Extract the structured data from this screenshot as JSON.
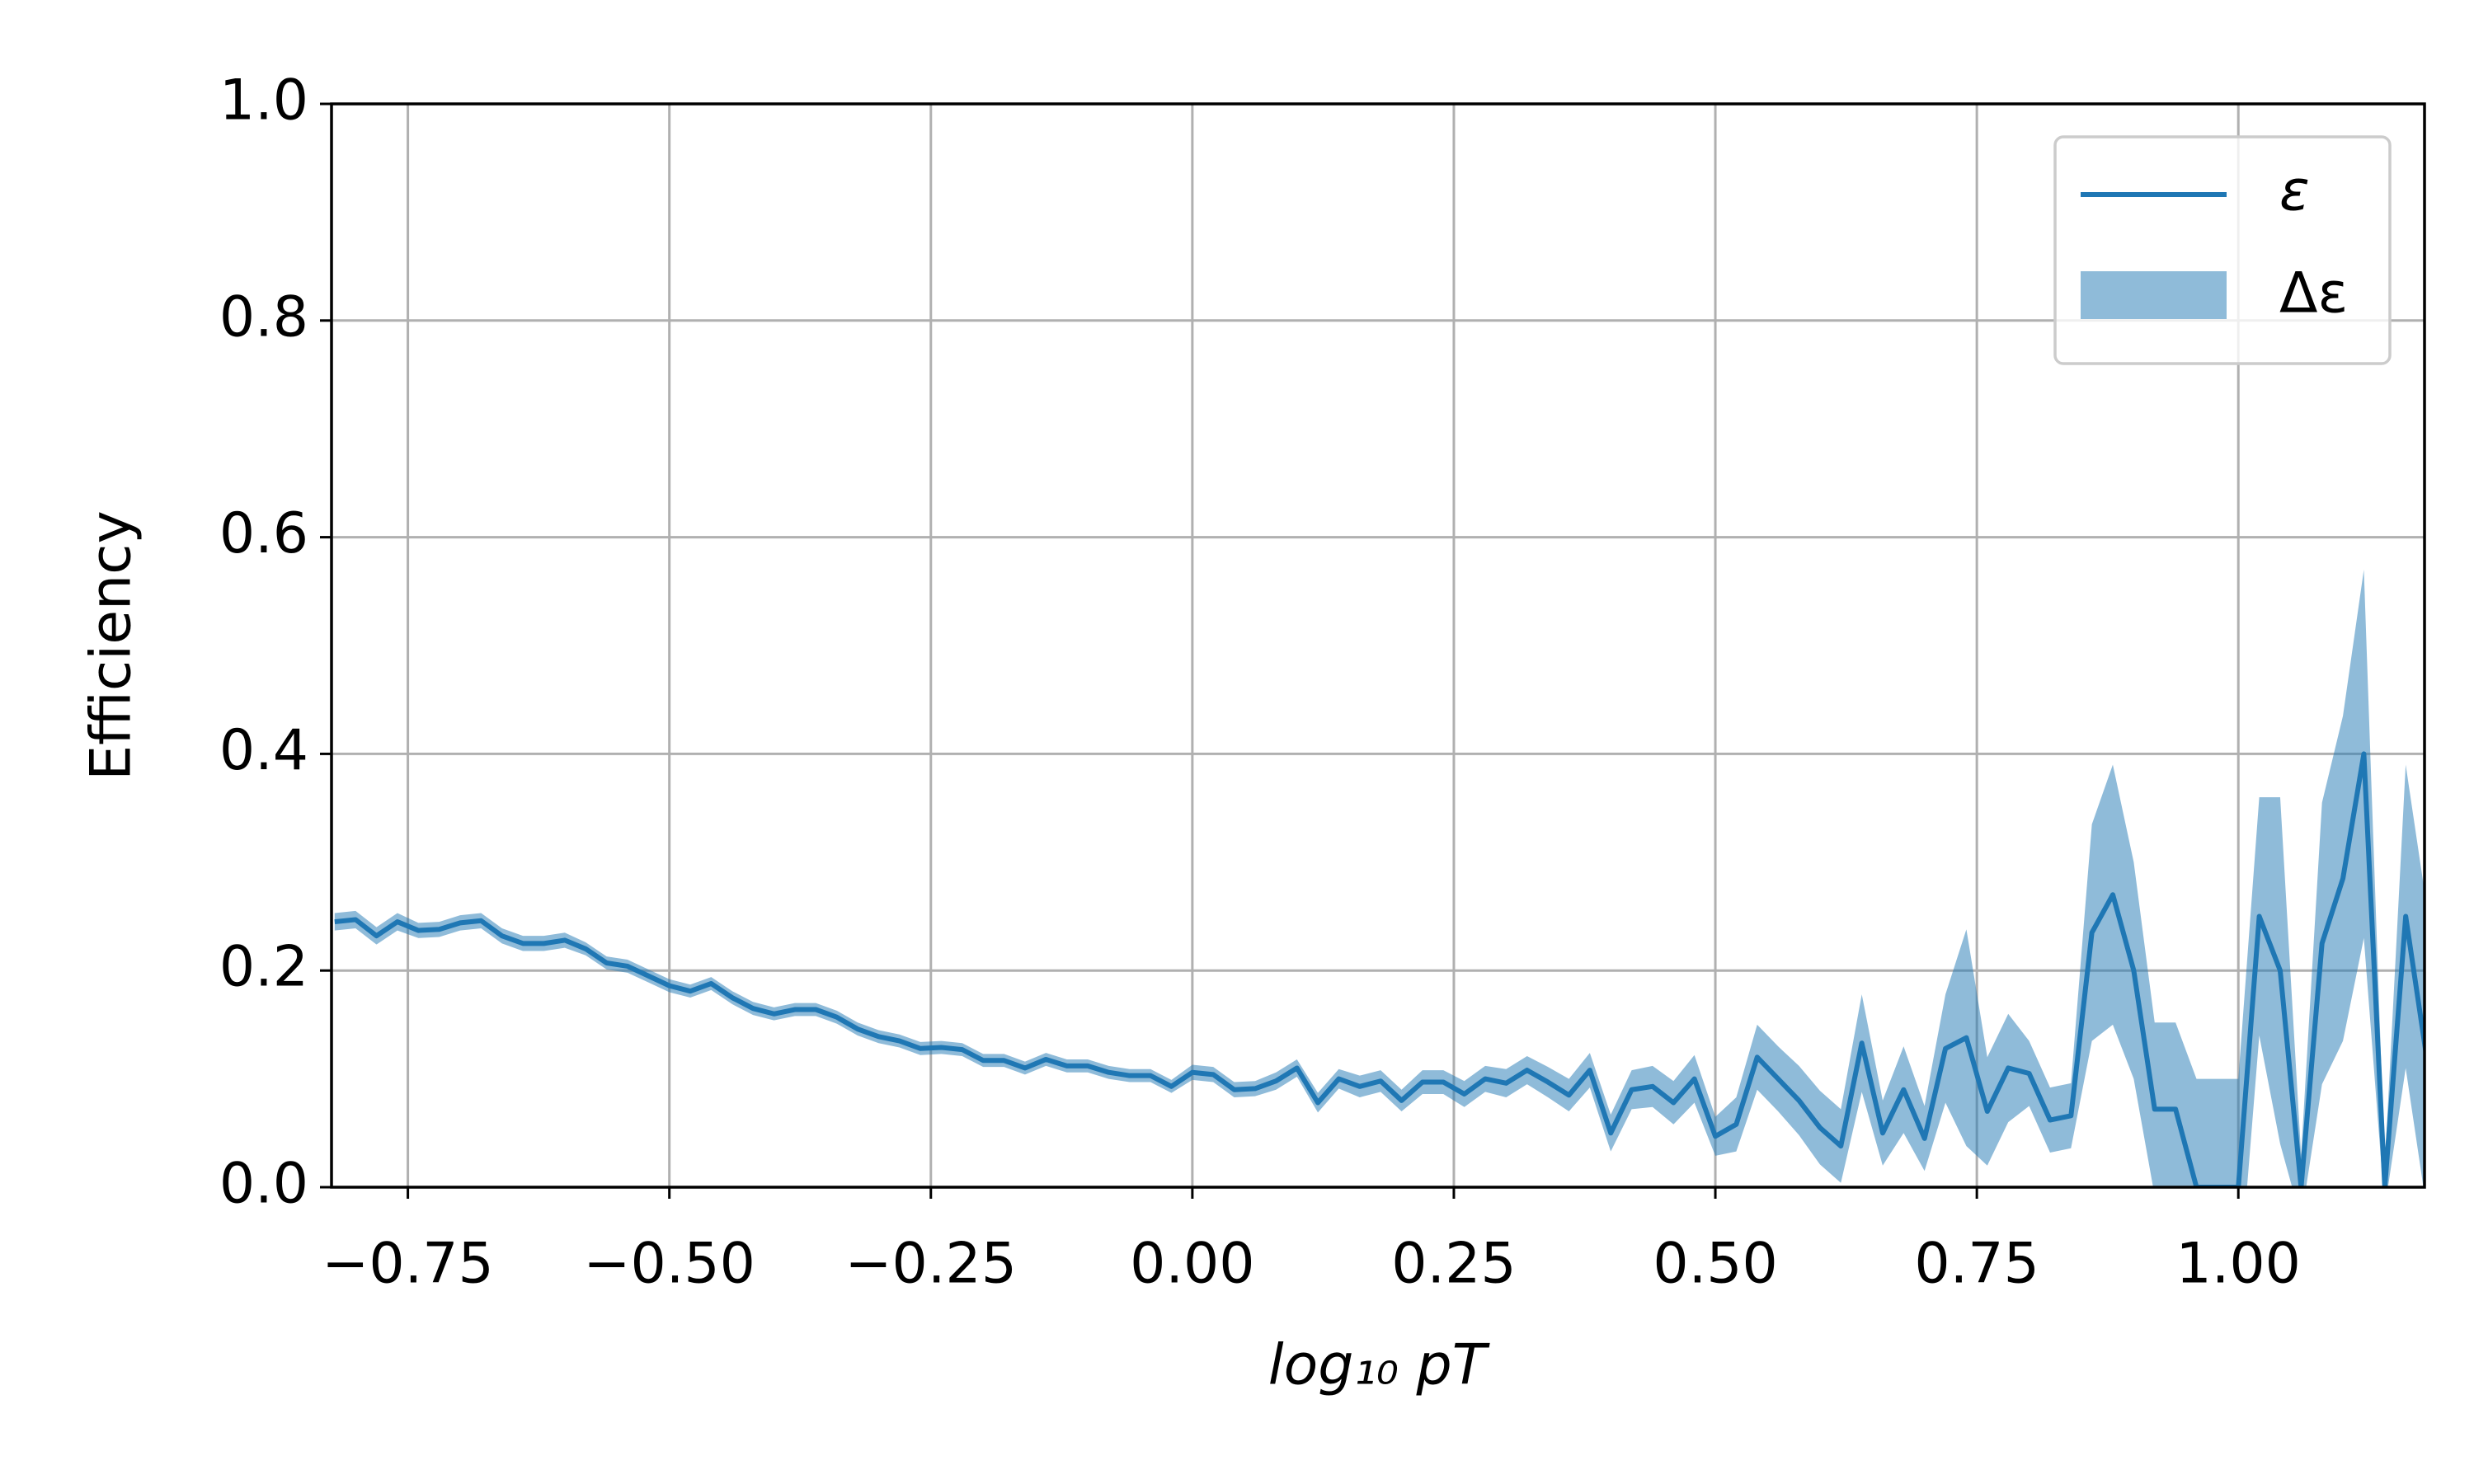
{
  "chart_data": {
    "type": "line",
    "x_label": "log₁₀ pT",
    "y_label": "Efficiency",
    "x": [
      -0.82,
      -0.8,
      -0.78,
      -0.76,
      -0.74,
      -0.72,
      -0.7,
      -0.68,
      -0.66,
      -0.64,
      -0.62,
      -0.6,
      -0.58,
      -0.56,
      -0.54,
      -0.52,
      -0.5,
      -0.48,
      -0.46,
      -0.44,
      -0.42,
      -0.4,
      -0.38,
      -0.36,
      -0.34,
      -0.32,
      -0.3,
      -0.28,
      -0.26,
      -0.24,
      -0.22,
      -0.2,
      -0.18,
      -0.16,
      -0.14,
      -0.12,
      -0.1,
      -0.08,
      -0.06,
      -0.04,
      -0.02,
      0,
      0.02,
      0.04,
      0.06,
      0.08,
      0.1,
      0.12,
      0.14,
      0.16,
      0.18,
      0.2,
      0.22,
      0.24,
      0.26,
      0.28,
      0.3,
      0.32,
      0.34,
      0.36,
      0.38,
      0.4,
      0.42,
      0.44,
      0.46,
      0.48,
      0.5,
      0.52,
      0.54,
      0.56,
      0.58,
      0.6,
      0.62,
      0.64,
      0.66,
      0.68,
      0.7,
      0.72,
      0.74,
      0.76,
      0.78,
      0.8,
      0.82,
      0.84,
      0.86,
      0.88,
      0.9,
      0.92,
      0.94,
      0.96,
      0.98,
      1,
      1.02,
      1.04,
      1.06,
      1.08,
      1.1,
      1.12,
      1.14,
      1.16,
      1.18
    ],
    "series": [
      {
        "name": "ε",
        "color": "#1f77b4",
        "values": [
          0.245,
          0.247,
          0.232,
          0.245,
          0.237,
          0.238,
          0.244,
          0.246,
          0.232,
          0.225,
          0.225,
          0.228,
          0.22,
          0.207,
          0.204,
          0.195,
          0.186,
          0.181,
          0.188,
          0.175,
          0.165,
          0.16,
          0.164,
          0.164,
          0.157,
          0.146,
          0.139,
          0.135,
          0.128,
          0.129,
          0.127,
          0.117,
          0.117,
          0.11,
          0.118,
          0.112,
          0.112,
          0.106,
          0.103,
          0.103,
          0.093,
          0.106,
          0.104,
          0.09,
          0.091,
          0.098,
          0.11,
          0.078,
          0.1,
          0.093,
          0.098,
          0.08,
          0.097,
          0.097,
          0.086,
          0.1,
          0.096,
          0.108,
          0.097,
          0.085,
          0.108,
          0.05,
          0.09,
          0.093,
          0.078,
          0.1,
          0.047,
          0.058,
          0.12,
          0.1,
          0.08,
          0.055,
          0.038,
          0.133,
          0.05,
          0.09,
          0.045,
          0.128,
          0.138,
          0.07,
          0.11,
          0.105,
          0.062,
          0.066,
          0.235,
          0.27,
          0.2,
          0.072,
          0.072,
          0,
          0,
          0,
          0.25,
          0.2,
          0,
          0.225,
          0.285,
          0.4,
          0,
          0.25,
          0.12
        ]
      },
      {
        "name": "Δε",
        "color": "#1f77b4",
        "opacity": 0.5,
        "values": [
          0.008,
          0.008,
          0.008,
          0.008,
          0.007,
          0.007,
          0.007,
          0.007,
          0.007,
          0.007,
          0.007,
          0.007,
          0.006,
          0.006,
          0.006,
          0.006,
          0.006,
          0.006,
          0.006,
          0.006,
          0.006,
          0.006,
          0.006,
          0.006,
          0.006,
          0.006,
          0.006,
          0.006,
          0.006,
          0.006,
          0.006,
          0.006,
          0.006,
          0.006,
          0.006,
          0.006,
          0.006,
          0.006,
          0.006,
          0.006,
          0.006,
          0.007,
          0.007,
          0.007,
          0.007,
          0.008,
          0.008,
          0.009,
          0.009,
          0.01,
          0.01,
          0.01,
          0.011,
          0.011,
          0.012,
          0.012,
          0.013,
          0.013,
          0.014,
          0.015,
          0.016,
          0.017,
          0.018,
          0.019,
          0.02,
          0.022,
          0.018,
          0.025,
          0.03,
          0.03,
          0.032,
          0.034,
          0.034,
          0.045,
          0.03,
          0.04,
          0.03,
          0.05,
          0.1,
          0.05,
          0.05,
          0.03,
          0.03,
          0.03,
          0.1,
          0.12,
          0.1,
          0.08,
          0.08,
          0.1,
          0.1,
          0.1,
          0.11,
          0.16,
          0.03,
          0.13,
          0.15,
          0.17,
          0.02,
          0.14,
          0.14
        ]
      }
    ],
    "xlim": [
      -0.823,
      1.178
    ],
    "ylim": [
      0,
      1
    ],
    "xticks": [
      {
        "value": -0.75,
        "label": "−0.75"
      },
      {
        "value": -0.5,
        "label": "−0.50"
      },
      {
        "value": -0.25,
        "label": "−0.25"
      },
      {
        "value": 0,
        "label": "0.00"
      },
      {
        "value": 0.25,
        "label": "0.25"
      },
      {
        "value": 0.5,
        "label": "0.50"
      },
      {
        "value": 0.75,
        "label": "0.75"
      },
      {
        "value": 1,
        "label": "1.00"
      }
    ],
    "yticks": [
      {
        "value": 0,
        "label": "0.0"
      },
      {
        "value": 0.2,
        "label": "0.2"
      },
      {
        "value": 0.4,
        "label": "0.4"
      },
      {
        "value": 0.6,
        "label": "0.6"
      },
      {
        "value": 0.8,
        "label": "0.8"
      },
      {
        "value": 1,
        "label": "1.0"
      }
    ],
    "grid": true,
    "legend": "upper right"
  }
}
